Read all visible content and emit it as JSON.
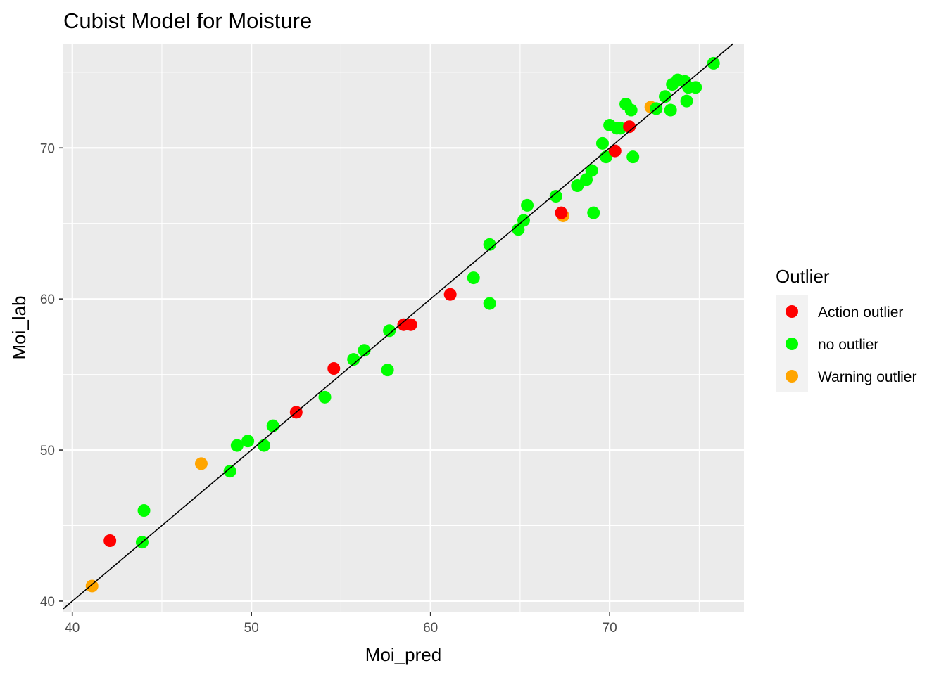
{
  "chart_data": {
    "type": "scatter",
    "title": "Cubist Model for Moisture",
    "xlabel": "Moi_pred",
    "ylabel": "Moi_lab",
    "xlim": [
      39.5,
      77.5
    ],
    "ylim": [
      39.3,
      76.9
    ],
    "x_ticks": [
      40,
      50,
      60,
      70
    ],
    "y_ticks": [
      40,
      50,
      60,
      70
    ],
    "grid": true,
    "reference_line": "y = x",
    "legend": {
      "title": "Outlier",
      "placement": "right",
      "entries": [
        {
          "label": "Action outlier",
          "color": "#ff0000"
        },
        {
          "label": "no outlier",
          "color": "#00ff00"
        },
        {
          "label": "Warning outlier",
          "color": "#ffa500"
        }
      ]
    },
    "series": [
      {
        "name": "Warning outlier",
        "color": "#ffa500",
        "points": [
          [
            41.1,
            41.0
          ],
          [
            47.2,
            49.1
          ],
          [
            67.4,
            65.5
          ],
          [
            72.3,
            72.7
          ]
        ]
      },
      {
        "name": "no outlier",
        "color": "#00ff00",
        "points": [
          [
            43.9,
            43.9
          ],
          [
            44.0,
            46.0
          ],
          [
            48.8,
            48.6
          ],
          [
            49.2,
            50.3
          ],
          [
            49.8,
            50.6
          ],
          [
            50.7,
            50.3
          ],
          [
            51.2,
            51.6
          ],
          [
            54.1,
            53.5
          ],
          [
            55.7,
            56.0
          ],
          [
            56.3,
            56.6
          ],
          [
            57.6,
            55.3
          ],
          [
            57.7,
            57.9
          ],
          [
            62.4,
            61.4
          ],
          [
            63.3,
            59.7
          ],
          [
            63.3,
            63.6
          ],
          [
            64.9,
            64.6
          ],
          [
            65.2,
            65.2
          ],
          [
            65.4,
            66.2
          ],
          [
            67.0,
            66.8
          ],
          [
            68.2,
            67.5
          ],
          [
            68.7,
            67.9
          ],
          [
            69.0,
            68.5
          ],
          [
            69.1,
            65.7
          ],
          [
            69.6,
            70.3
          ],
          [
            69.8,
            69.4
          ],
          [
            70.0,
            71.5
          ],
          [
            70.4,
            71.3
          ],
          [
            70.6,
            71.3
          ],
          [
            70.9,
            72.9
          ],
          [
            71.2,
            72.5
          ],
          [
            71.3,
            69.4
          ],
          [
            72.6,
            72.6
          ],
          [
            73.1,
            73.4
          ],
          [
            73.4,
            72.5
          ],
          [
            73.5,
            74.2
          ],
          [
            73.8,
            74.5
          ],
          [
            74.2,
            74.4
          ],
          [
            74.3,
            73.1
          ],
          [
            74.4,
            74.0
          ],
          [
            74.8,
            74.0
          ],
          [
            75.8,
            75.6
          ]
        ]
      },
      {
        "name": "Action outlier",
        "color": "#ff0000",
        "points": [
          [
            42.1,
            44.0
          ],
          [
            52.5,
            52.5
          ],
          [
            54.6,
            55.4
          ],
          [
            58.5,
            58.3
          ],
          [
            58.9,
            58.3
          ],
          [
            61.1,
            60.3
          ],
          [
            67.3,
            65.7
          ],
          [
            70.3,
            69.8
          ],
          [
            71.1,
            71.4
          ]
        ]
      }
    ]
  }
}
